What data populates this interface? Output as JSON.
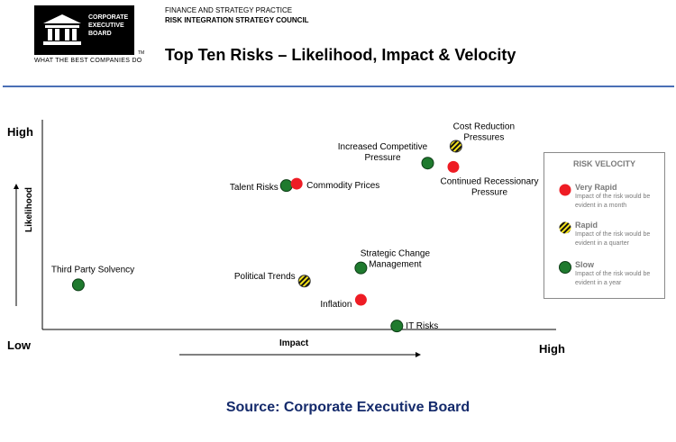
{
  "header": {
    "logo_text": "CORPORATE\nEXECUTIVE\nBOARD",
    "logo_tm": "TM",
    "tagline": "WHAT THE BEST COMPANIES DO",
    "practice": "FINANCE AND STRATEGY PRACTICE",
    "council": "RISK INTEGRATION STRATEGY COUNCIL",
    "title": "Top Ten Risks – Likelihood, Impact & Velocity"
  },
  "colors": {
    "very_rapid": "#ee1c24",
    "rapid": "#f5e31a",
    "slow": "#1f7a2e",
    "rule": "#4a6fb5",
    "source": "#142a6b"
  },
  "chart_data": {
    "type": "scatter",
    "xlabel": "Impact",
    "ylabel": "Likelihood",
    "x_low_label": "Low",
    "x_high_label": "High",
    "y_high_label": "High",
    "xlim": [
      0,
      100
    ],
    "ylim": [
      0,
      100
    ],
    "grid": false,
    "legend_position": "right",
    "points": [
      {
        "label": "Third Party Solvency",
        "x": 7,
        "y": 20,
        "velocity": "slow"
      },
      {
        "label": "Talent Risks",
        "x": 47.5,
        "y": 73,
        "velocity": "slow"
      },
      {
        "label": "Commodity Prices",
        "x": 49.5,
        "y": 74,
        "velocity": "very_rapid"
      },
      {
        "label": "Political Trends",
        "x": 51,
        "y": 22,
        "velocity": "rapid"
      },
      {
        "label": "Strategic Change Management",
        "x": 62,
        "y": 29,
        "velocity": "slow"
      },
      {
        "label": "Inflation",
        "x": 62,
        "y": 12,
        "velocity": "very_rapid"
      },
      {
        "label": "IT Risks",
        "x": 69,
        "y": -2,
        "velocity": "slow"
      },
      {
        "label": "Increased Competitive Pressure",
        "x": 75,
        "y": 85,
        "velocity": "slow"
      },
      {
        "label": "Cost Reduction Pressures",
        "x": 80.5,
        "y": 94,
        "velocity": "rapid"
      },
      {
        "label": "Continued Recessionary Pressure",
        "x": 80,
        "y": 83,
        "velocity": "very_rapid"
      }
    ]
  },
  "legend": {
    "title": "RISK VELOCITY",
    "items": [
      {
        "name": "Very Rapid",
        "desc": "Impact of the risk would be evident in a month",
        "velocity": "very_rapid"
      },
      {
        "name": "Rapid",
        "desc": "Impact of the risk would be evident in a quarter",
        "velocity": "rapid"
      },
      {
        "name": "Slow",
        "desc": "Impact of the risk would be evident in a year",
        "velocity": "slow"
      }
    ]
  },
  "source": "Source: Corporate Executive Board"
}
